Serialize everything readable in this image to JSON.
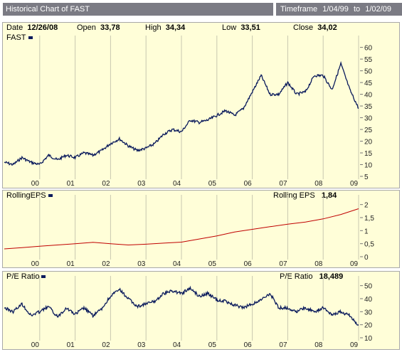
{
  "header": {
    "title": "Historical Chart of FAST",
    "timeframe_label": "Timeframe",
    "timeframe_start": "1/04/99",
    "timeframe_to": "to",
    "timeframe_end": "1/02/09"
  },
  "price_info": {
    "date_label": "Date",
    "date": "12/26/08",
    "open_label": "Open",
    "open": "33,78",
    "high_label": "High",
    "high": "34,34",
    "low_label": "Low",
    "low": "33,51",
    "close_label": "Close",
    "close": "34,02"
  },
  "colors": {
    "price": "#0a1a5c",
    "eps": "#c00000",
    "pe": "#0a1a5c",
    "panel_bg": "#fffed8",
    "title_bg": "#7b7b84"
  },
  "chart_data": [
    {
      "type": "line",
      "title": "FAST",
      "x": [
        1999.0,
        1999.25,
        1999.5,
        1999.75,
        2000.0,
        2000.25,
        2000.5,
        2000.75,
        2001.0,
        2001.25,
        2001.5,
        2001.75,
        2002.0,
        2002.25,
        2002.5,
        2002.75,
        2003.0,
        2003.25,
        2003.5,
        2003.75,
        2004.0,
        2004.25,
        2004.5,
        2004.75,
        2005.0,
        2005.25,
        2005.5,
        2005.75,
        2006.0,
        2006.25,
        2006.5,
        2006.75,
        2007.0,
        2007.25,
        2007.5,
        2007.75,
        2008.0,
        2008.25,
        2008.5,
        2008.75,
        2009.0
      ],
      "values": [
        11,
        10,
        13,
        11,
        10,
        14,
        12,
        14,
        13,
        15,
        14,
        16,
        19,
        21,
        18,
        16,
        17,
        19,
        23,
        25,
        24,
        29,
        28,
        29,
        31,
        33,
        31,
        34,
        41,
        48,
        40,
        40,
        45,
        40,
        41,
        48,
        48,
        42,
        53,
        42,
        34
      ],
      "ylim": [
        5,
        62
      ],
      "yticks": [
        "5",
        "10",
        "15",
        "20",
        "25",
        "30",
        "35",
        "40",
        "45",
        "50",
        "55",
        "60"
      ],
      "xticks": [
        "00",
        "01",
        "02",
        "03",
        "04",
        "05",
        "06",
        "07",
        "08",
        "09"
      ]
    },
    {
      "type": "line",
      "title": "RollingEPS",
      "value_label": "Rolling EPS",
      "current_value": "1,84",
      "x": [
        1999.0,
        1999.5,
        2000.0,
        2000.5,
        2001.0,
        2001.5,
        2002.0,
        2002.5,
        2003.0,
        2003.5,
        2004.0,
        2004.5,
        2005.0,
        2005.5,
        2006.0,
        2006.5,
        2007.0,
        2007.5,
        2008.0,
        2008.5,
        2009.0
      ],
      "values": [
        0.3,
        0.35,
        0.4,
        0.45,
        0.5,
        0.55,
        0.5,
        0.45,
        0.48,
        0.52,
        0.56,
        0.68,
        0.8,
        0.95,
        1.05,
        1.15,
        1.25,
        1.33,
        1.45,
        1.62,
        1.84
      ],
      "ylim": [
        0,
        2.1
      ],
      "yticks": [
        "0",
        "0,5",
        "1",
        "1,5",
        "2"
      ],
      "xticks": [
        "00",
        "01",
        "02",
        "03",
        "04",
        "05",
        "06",
        "07",
        "08",
        "09"
      ]
    },
    {
      "type": "line",
      "title": "P/E Ratio",
      "value_label": "P/E Ratio",
      "current_value": "18,489",
      "x": [
        1999.0,
        1999.25,
        1999.5,
        1999.75,
        2000.0,
        2000.25,
        2000.5,
        2000.75,
        2001.0,
        2001.25,
        2001.5,
        2001.75,
        2002.0,
        2002.25,
        2002.5,
        2002.75,
        2003.0,
        2003.25,
        2003.5,
        2003.75,
        2004.0,
        2004.25,
        2004.5,
        2004.75,
        2005.0,
        2005.25,
        2005.5,
        2005.75,
        2006.0,
        2006.25,
        2006.5,
        2006.75,
        2007.0,
        2007.25,
        2007.5,
        2007.75,
        2008.0,
        2008.25,
        2008.5,
        2008.75,
        2009.0
      ],
      "values": [
        33,
        30,
        36,
        27,
        30,
        34,
        26,
        33,
        28,
        33,
        27,
        32,
        42,
        47,
        40,
        34,
        36,
        38,
        44,
        46,
        44,
        48,
        42,
        44,
        39,
        38,
        35,
        33,
        36,
        39,
        44,
        33,
        33,
        30,
        33,
        30,
        33,
        28,
        30,
        27,
        18.5
      ],
      "ylim": [
        10,
        52
      ],
      "yticks": [
        "10",
        "20",
        "30",
        "40",
        "50"
      ],
      "xticks": [
        "00",
        "01",
        "02",
        "03",
        "04",
        "05",
        "06",
        "07",
        "08",
        "09"
      ]
    }
  ]
}
